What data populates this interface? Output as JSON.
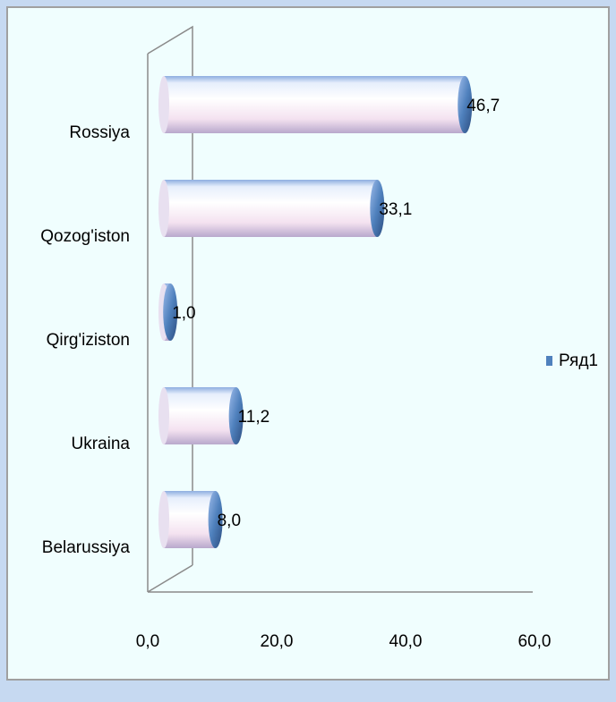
{
  "chart_data": {
    "type": "bar",
    "orientation": "horizontal",
    "categories": [
      "Rossiya",
      "Qozog'iston",
      "Qirg'iziston",
      "Ukraina",
      "Belarussiya"
    ],
    "series": [
      {
        "name": "Ряд1",
        "color": "#4f81bd",
        "values": [
          46.7,
          33.1,
          1.0,
          11.2,
          8.0
        ],
        "value_labels": [
          "46,7",
          "33,1",
          "1,0",
          "11,2",
          "8,0"
        ]
      }
    ],
    "xlim": [
      0,
      60
    ],
    "xticks": [
      {
        "value": 0,
        "label": "0,0"
      },
      {
        "value": 20,
        "label": "20,0"
      },
      {
        "value": 40,
        "label": "40,0"
      },
      {
        "value": 60,
        "label": "60,0"
      }
    ],
    "legend": "right"
  }
}
